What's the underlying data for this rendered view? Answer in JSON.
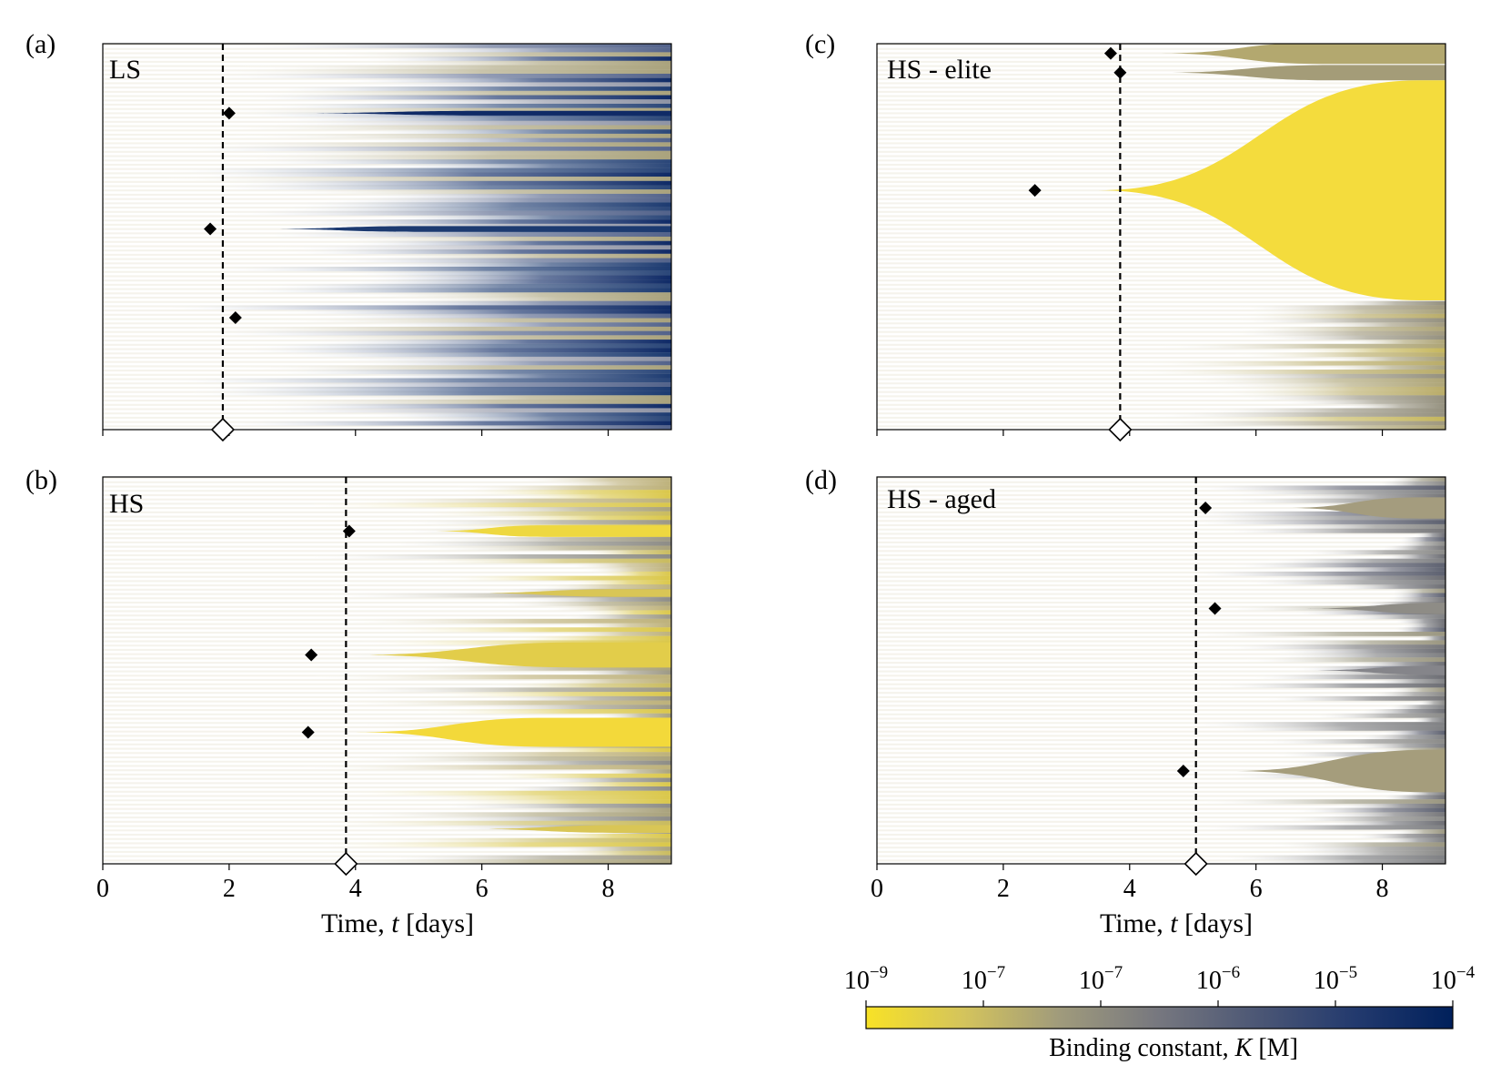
{
  "figure": {
    "colors": {
      "yellow": "#f5dc3c",
      "olive": "#a9a27c",
      "gray": "#77777a",
      "navy": "#1c3a70",
      "deep_blue": "#0f2a66",
      "faint": "#ece9dd"
    }
  },
  "chart_data": [
    {
      "id": "a",
      "type": "heatmap",
      "panel_label": "(a)",
      "title": "LS",
      "xlabel": "",
      "xlim": [
        0,
        9
      ],
      "xticks": [
        0,
        2,
        4,
        6,
        8
      ],
      "show_tick_labels": false,
      "vline_x": 1.9,
      "open_marker_x": 1.9,
      "regime": "blue-spread",
      "spread_start": 3.5,
      "spread_end": 6.0,
      "markers": [
        {
          "x": 2.0,
          "y": 0.18
        },
        {
          "x": 1.7,
          "y": 0.48
        },
        {
          "x": 2.1,
          "y": 0.71
        }
      ],
      "wedges": [
        {
          "y": 0.48,
          "x_start": 2.5,
          "x_full": 5.0,
          "max_width": 0.015,
          "color": "#1c3a70"
        },
        {
          "y": 0.18,
          "x_start": 3.0,
          "x_full": 6.0,
          "max_width": 0.012,
          "color": "#0f2a66"
        }
      ]
    },
    {
      "id": "b",
      "type": "heatmap",
      "panel_label": "(b)",
      "title": "HS",
      "xlabel": "Time, t [days]",
      "xlim": [
        0,
        9
      ],
      "xticks": [
        0,
        2,
        4,
        6,
        8
      ],
      "show_tick_labels": true,
      "vline_x": 3.85,
      "open_marker_x": 3.85,
      "regime": "yellow-gray",
      "spread_start": 5.0,
      "spread_end": 8.2,
      "markers": [
        {
          "x": 3.9,
          "y": 0.14
        },
        {
          "x": 3.3,
          "y": 0.46
        },
        {
          "x": 3.25,
          "y": 0.66
        }
      ],
      "wedges": [
        {
          "y": 0.14,
          "x_start": 5.2,
          "x_full": 7.0,
          "max_width": 0.03,
          "color": "#eed840"
        },
        {
          "y": 0.46,
          "x_start": 4.0,
          "x_full": 7.5,
          "max_width": 0.065,
          "color": "#e2cd4a"
        },
        {
          "y": 0.66,
          "x_start": 4.0,
          "x_full": 7.0,
          "max_width": 0.075,
          "color": "#f3d93a"
        },
        {
          "y": 0.3,
          "x_start": 5.8,
          "x_full": 8.2,
          "max_width": 0.02,
          "color": "#d9c656"
        },
        {
          "y": 0.91,
          "x_start": 5.8,
          "x_full": 8.2,
          "max_width": 0.02,
          "color": "#d9c656"
        }
      ]
    },
    {
      "id": "c",
      "type": "heatmap",
      "panel_label": "(c)",
      "title": "HS - elite",
      "xlabel": "",
      "xlim": [
        0,
        9
      ],
      "xticks": [
        0,
        2,
        4,
        6,
        8
      ],
      "show_tick_labels": false,
      "vline_x": 3.85,
      "open_marker_x": 3.85,
      "regime": "elite",
      "spread_start": 5.6,
      "spread_end": 8.0,
      "lower_zone_start": 0.66,
      "markers": [
        {
          "x": 3.7,
          "y": 0.025
        },
        {
          "x": 3.85,
          "y": 0.075
        },
        {
          "x": 2.5,
          "y": 0.38
        }
      ],
      "wedges": [
        {
          "y": 0.025,
          "x_start": 4.5,
          "x_full": 7.0,
          "max_width": 0.055,
          "color": "#b3a86f"
        },
        {
          "y": 0.075,
          "x_start": 4.5,
          "x_full": 7.2,
          "max_width": 0.04,
          "color": "#a49c78"
        },
        {
          "y": 0.38,
          "x_start": 3.5,
          "x_full": 8.6,
          "max_width": 0.57,
          "color": "#f4dc3d"
        }
      ]
    },
    {
      "id": "d",
      "type": "heatmap",
      "panel_label": "(d)",
      "title": "HS - aged",
      "xlabel": "Time, t [days]",
      "xlim": [
        0,
        9
      ],
      "xticks": [
        0,
        2,
        4,
        6,
        8
      ],
      "show_tick_labels": true,
      "vline_x": 5.05,
      "open_marker_x": 5.05,
      "regime": "gray-spread",
      "spread_start": 6.2,
      "spread_end": 9.0,
      "markers": [
        {
          "x": 5.2,
          "y": 0.08
        },
        {
          "x": 5.35,
          "y": 0.34
        },
        {
          "x": 4.85,
          "y": 0.76
        }
      ],
      "wedges": [
        {
          "y": 0.08,
          "x_start": 6.5,
          "x_full": 8.6,
          "max_width": 0.055,
          "color": "#a49c7e"
        },
        {
          "y": 0.76,
          "x_start": 5.6,
          "x_full": 8.8,
          "max_width": 0.11,
          "color": "#a59d7c"
        },
        {
          "y": 0.34,
          "x_start": 6.8,
          "x_full": 9.0,
          "max_width": 0.03,
          "color": "#8e8c86"
        },
        {
          "y": 0.5,
          "x_start": 6.8,
          "x_full": 9.0,
          "max_width": 0.025,
          "color": "#85858a"
        }
      ]
    }
  ],
  "colorbar": {
    "label_prefix": "Binding constant, ",
    "label_var": "K",
    "label_suffix": " [M]",
    "ticks": [
      {
        "base": "10",
        "exp": "−9"
      },
      {
        "base": "10",
        "exp": "−7"
      },
      {
        "base": "10",
        "exp": "−7"
      },
      {
        "base": "10",
        "exp": "−6"
      },
      {
        "base": "10",
        "exp": "−5"
      },
      {
        "base": "10",
        "exp": "−4"
      }
    ],
    "gradient": [
      "#f8e226",
      "#d4c45c",
      "#9f9a7c",
      "#76777f",
      "#4c5775",
      "#233a6e",
      "#00205b"
    ]
  },
  "xaxis_label": {
    "prefix": "Time, ",
    "var": "t",
    "suffix": " [days]"
  }
}
